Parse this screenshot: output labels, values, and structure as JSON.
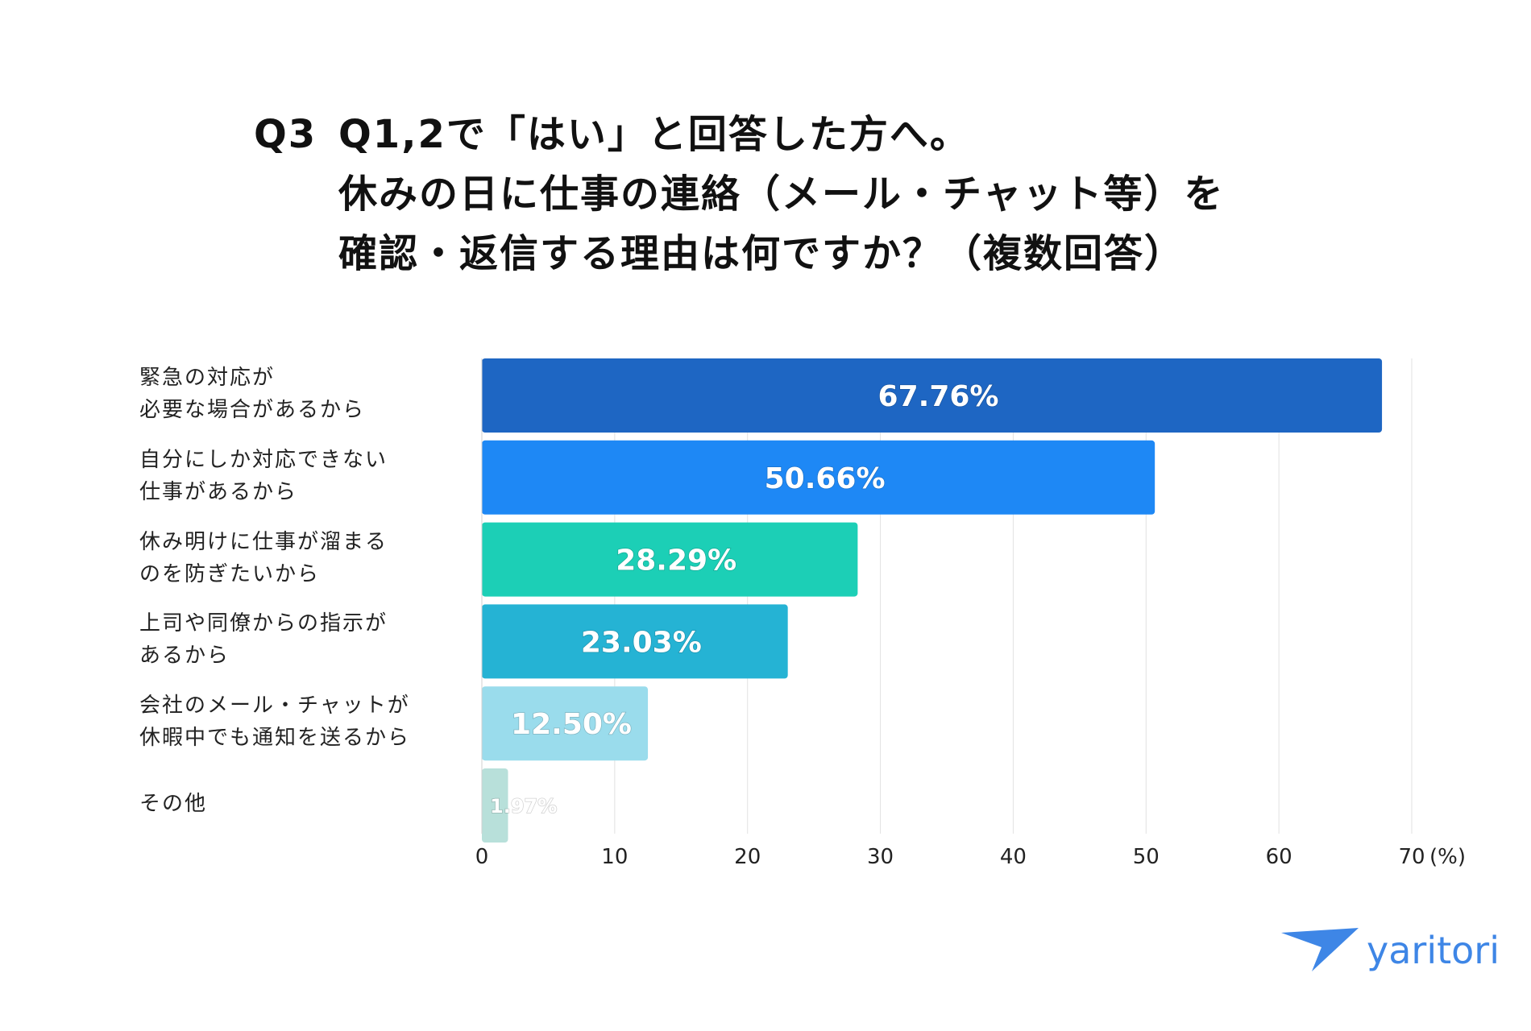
{
  "title": {
    "q_label": "Q3",
    "lines": [
      "Q1,2で「はい」と回答した方へ。",
      "休みの日に仕事の連絡（メール・チャット等）を",
      "確認・返信する理由は何ですか？（複数回答）"
    ]
  },
  "chart_data": {
    "type": "bar",
    "orientation": "horizontal",
    "categories": [
      [
        "緊急の対応が",
        "必要な場合があるから"
      ],
      [
        "自分にしか対応できない",
        "仕事があるから"
      ],
      [
        "休み明けに仕事が溜まる",
        "のを防ぎたいから"
      ],
      [
        "上司や同僚からの指示が",
        "あるから"
      ],
      [
        "会社のメール・チャットが",
        "休暇中でも通知を送るから"
      ],
      [
        "その他"
      ]
    ],
    "values": [
      67.76,
      50.66,
      28.29,
      23.03,
      12.5,
      1.97
    ],
    "data_labels": [
      "67.76%",
      "50.66%",
      "28.29%",
      "23.03%",
      "12.50%",
      "1.97%"
    ],
    "bar_colors": [
      "#1e66c3",
      "#1e88f5",
      "#1ccfb6",
      "#25b3d4",
      "#9adcec",
      "#b8e0da"
    ],
    "x_ticks": [
      "0",
      "10",
      "20",
      "30",
      "40",
      "50",
      "60",
      "70"
    ],
    "x_unit": "(%)",
    "xlim": [
      0,
      70
    ],
    "grid": true
  },
  "brand": {
    "name": "yaritori",
    "color": "#3e86e6"
  }
}
